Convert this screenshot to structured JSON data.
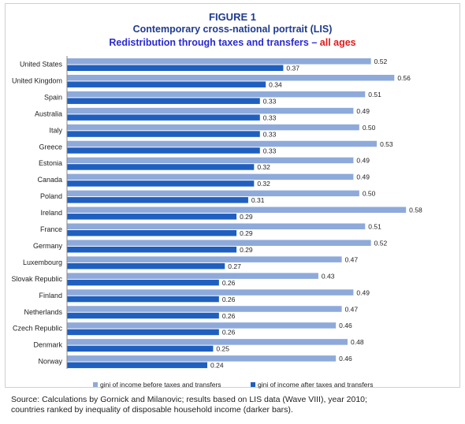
{
  "figure": {
    "label": "FIGURE 1",
    "subtitle": "Contemporary cross-national portrait (LIS)",
    "heading_main": "Redistribution through taxes and transfers –",
    "heading_highlight": "all ages"
  },
  "colors": {
    "before": "#8eaadb",
    "after": "#1f5fbf",
    "title": "#1f3b8c",
    "heading": "#2a2ad0",
    "highlight": "#e01b1b"
  },
  "chart_data": {
    "type": "bar",
    "orientation": "horizontal",
    "categories": [
      "United States",
      "United Kingdom",
      "Spain",
      "Australia",
      "Italy",
      "Greece",
      "Estonia",
      "Canada",
      "Poland",
      "Ireland",
      "France",
      "Germany",
      "Luxembourg",
      "Slovak Republic",
      "Finland",
      "Netherlands",
      "Czech Republic",
      "Denmark",
      "Norway"
    ],
    "series": [
      {
        "name": "gini of income before taxes and transfers",
        "values": [
          0.52,
          0.56,
          0.51,
          0.49,
          0.5,
          0.53,
          0.49,
          0.49,
          0.5,
          0.58,
          0.51,
          0.52,
          0.47,
          0.43,
          0.49,
          0.47,
          0.46,
          0.48,
          0.46
        ],
        "labels": [
          "0.52",
          "0.56",
          "0.51",
          "0.49",
          "0.50",
          "0.53",
          "0.49",
          "0.49",
          "0.50",
          "0.58",
          "0.51",
          "0.52",
          "0.47",
          "0.43",
          "0.49",
          "0.47",
          "0.46",
          "0.48",
          "0.46"
        ]
      },
      {
        "name": "gini of income after taxes and transfers",
        "values": [
          0.37,
          0.34,
          0.33,
          0.33,
          0.33,
          0.33,
          0.32,
          0.32,
          0.31,
          0.29,
          0.29,
          0.29,
          0.27,
          0.26,
          0.26,
          0.26,
          0.26,
          0.25,
          0.24
        ],
        "labels": [
          "0.37",
          "0.34",
          "0.33",
          "0.33",
          "0.33",
          "0.33",
          "0.32",
          "0.32",
          "0.31",
          "0.29",
          "0.29",
          "0.29",
          "0.27",
          "0.26",
          "0.26",
          "0.26",
          "0.26",
          "0.25",
          "0.24"
        ]
      }
    ],
    "xlim": [
      0,
      0.6
    ],
    "grid": false,
    "legend_position": "bottom"
  },
  "source": {
    "line1": "Source:  Calculations by Gornick and Milanovic; results based on LIS data (Wave VIII), year 2010;",
    "line2": "countries ranked by inequality of disposable household income (darker bars)."
  }
}
